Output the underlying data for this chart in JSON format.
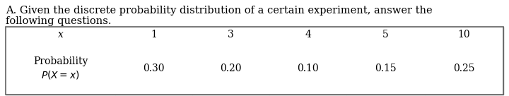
{
  "title_line1": "A. Given the discrete probability distribution of a certain experiment, answer the",
  "title_line2": "following questions.",
  "col_headers": [
    "x",
    "1",
    "3",
    "4",
    "5",
    "10"
  ],
  "row1_label": "Probability\nP(X = x)",
  "row1_values": [
    "0.30",
    "0.20",
    "0.10",
    "0.15",
    "0.25"
  ],
  "bg_color": "#ffffff",
  "text_color": "#000000",
  "border_color": "#666666",
  "font_size_title": 10.5,
  "font_size_table": 10.0
}
